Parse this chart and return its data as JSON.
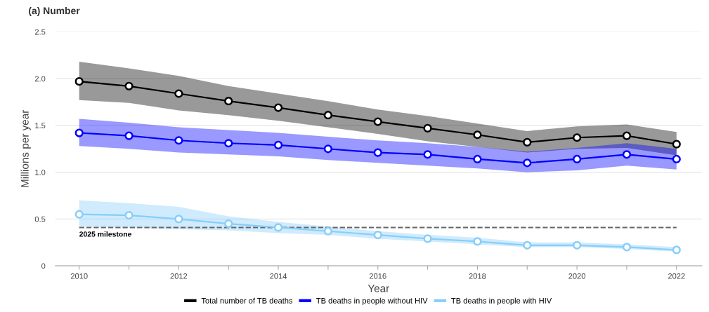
{
  "chart_data": {
    "type": "line",
    "title": "(a) Number",
    "xlabel": "Year",
    "ylabel": "Millions per year",
    "x": [
      2010,
      2011,
      2012,
      2013,
      2014,
      2015,
      2016,
      2017,
      2018,
      2019,
      2020,
      2021,
      2022
    ],
    "series": [
      {
        "name": "Total number of TB deaths",
        "color": "#000000",
        "values": [
          1.97,
          1.92,
          1.84,
          1.76,
          1.69,
          1.61,
          1.54,
          1.47,
          1.4,
          1.32,
          1.37,
          1.39,
          1.3
        ],
        "upper": [
          2.18,
          2.11,
          2.03,
          1.92,
          1.84,
          1.76,
          1.67,
          1.6,
          1.52,
          1.44,
          1.49,
          1.51,
          1.43
        ],
        "lower": [
          1.77,
          1.74,
          1.66,
          1.61,
          1.55,
          1.48,
          1.41,
          1.33,
          1.27,
          1.21,
          1.25,
          1.26,
          1.18
        ]
      },
      {
        "name": "TB deaths in people without HIV",
        "color": "#0000ff",
        "values": [
          1.42,
          1.39,
          1.34,
          1.31,
          1.29,
          1.25,
          1.21,
          1.19,
          1.14,
          1.1,
          1.14,
          1.19,
          1.14
        ],
        "upper": [
          1.57,
          1.53,
          1.48,
          1.45,
          1.42,
          1.38,
          1.34,
          1.31,
          1.27,
          1.22,
          1.26,
          1.31,
          1.25
        ],
        "lower": [
          1.28,
          1.25,
          1.21,
          1.19,
          1.17,
          1.13,
          1.1,
          1.07,
          1.04,
          1.0,
          1.02,
          1.07,
          1.03
        ]
      },
      {
        "name": "TB deaths in people with HIV",
        "color": "#87cefa",
        "values": [
          0.55,
          0.54,
          0.5,
          0.45,
          0.41,
          0.37,
          0.33,
          0.29,
          0.26,
          0.22,
          0.22,
          0.2,
          0.17
        ],
        "upper": [
          0.7,
          0.67,
          0.63,
          0.53,
          0.47,
          0.42,
          0.37,
          0.33,
          0.3,
          0.25,
          0.25,
          0.23,
          0.2
        ],
        "lower": [
          0.42,
          0.41,
          0.39,
          0.38,
          0.35,
          0.33,
          0.29,
          0.26,
          0.23,
          0.2,
          0.2,
          0.18,
          0.15
        ]
      }
    ],
    "xlim": [
      2009.52,
      2022.51
    ],
    "xticks": [
      2010,
      {
        "value": 2011,
        "label": null
      },
      2012,
      {
        "value": 2013,
        "label": null
      },
      2014,
      {
        "value": 2015,
        "label": null
      },
      2016,
      {
        "value": 2017,
        "label": null
      },
      2018,
      {
        "value": 2019,
        "label": null
      },
      2020,
      {
        "value": 2021,
        "label": null
      },
      2022
    ],
    "ylim": [
      0,
      2.5
    ],
    "yticks": [
      0,
      {
        "value": 0.5,
        "label": "0.5"
      },
      {
        "value": 1.0,
        "label": "1.0"
      },
      {
        "value": 1.5,
        "label": "1.5"
      },
      {
        "value": 2.0,
        "label": "2.0"
      },
      {
        "value": 2.5,
        "label": "2.5"
      }
    ],
    "ref_lines": [
      {
        "axis": "y",
        "value": 0.41,
        "label": "2025 milestone",
        "color": "#666666",
        "line_style": "dashed"
      }
    ],
    "grid": "y",
    "legend": "bottom",
    "marker": "circle",
    "line_style": "solid"
  }
}
